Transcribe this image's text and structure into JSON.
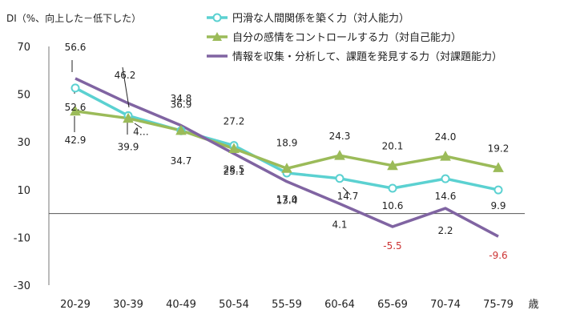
{
  "chart_data": {
    "type": "line",
    "ylabel": "DI（%、向上した－低下した）",
    "xlabel_unit": "歳",
    "categories": [
      "20-29",
      "30-39",
      "40-49",
      "50-54",
      "55-59",
      "60-64",
      "65-69",
      "70-74",
      "75-79"
    ],
    "ylim": [
      -30,
      70
    ],
    "yticks": [
      -30,
      -10,
      10,
      30,
      50,
      70
    ],
    "legend_position": "top-right",
    "grid": false,
    "series": [
      {
        "name": "円滑な人間関係を築く力（対人能力）",
        "color": "#5bd1d1",
        "marker": "circle-open",
        "values": [
          52.6,
          41.0,
          34.7,
          28.5,
          17.0,
          14.7,
          10.6,
          14.6,
          9.9
        ],
        "labels": [
          "52.6",
          "4…",
          "34.7",
          "28.5",
          "17.0",
          "14.7",
          "10.6",
          "14.6",
          "9.9"
        ]
      },
      {
        "name": "自分の感情をコントロールする力（対自己能力）",
        "color": "#9bbb59",
        "marker": "triangle",
        "values": [
          42.9,
          39.9,
          34.8,
          27.2,
          18.9,
          24.3,
          20.1,
          24.0,
          19.2
        ],
        "labels": [
          "42.9",
          "39.9",
          "34.8",
          "27.2",
          "18.9",
          "24.3",
          "20.1",
          "24.0",
          "19.2"
        ]
      },
      {
        "name": "情報を収集・分析して、課題を発見する力（対課題能力）",
        "color": "#8064a2",
        "marker": "none",
        "values": [
          56.6,
          46.2,
          36.9,
          25.1,
          13.4,
          4.1,
          -5.5,
          2.2,
          -9.6
        ],
        "labels": [
          "56.6",
          "46.2",
          "36.9",
          "25.1",
          "13.4",
          "4.1",
          "-5.5",
          "2.2",
          "-9.6"
        ]
      }
    ]
  }
}
